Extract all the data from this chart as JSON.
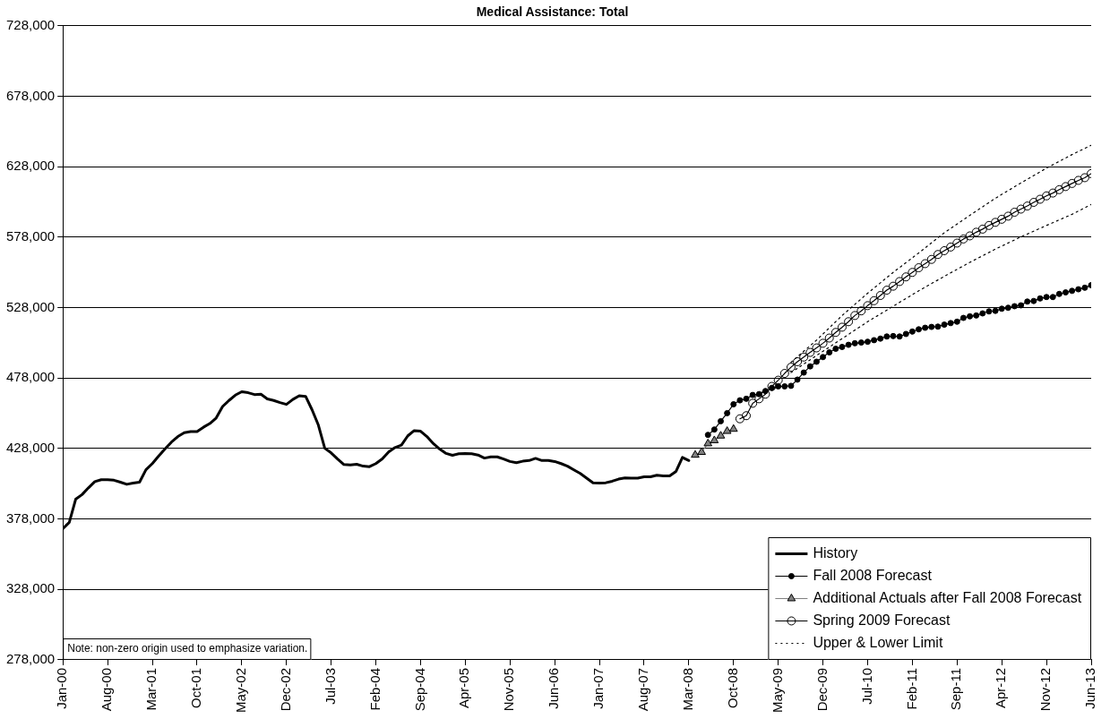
{
  "chart_data": {
    "type": "line",
    "title": "Medical Assistance: Total",
    "xlim": [
      "2000-01",
      "2013-06"
    ],
    "xticks": [
      {
        "value": "2000-01",
        "label": "Jan-00"
      },
      {
        "value": "2000-08",
        "label": "Aug-00"
      },
      {
        "value": "2001-03",
        "label": "Mar-01"
      },
      {
        "value": "2001-10",
        "label": "Oct-01"
      },
      {
        "value": "2002-05",
        "label": "May-02"
      },
      {
        "value": "2002-12",
        "label": "Dec-02"
      },
      {
        "value": "2003-07",
        "label": "Jul-03"
      },
      {
        "value": "2004-02",
        "label": "Feb-04"
      },
      {
        "value": "2004-09",
        "label": "Sep-04"
      },
      {
        "value": "2005-04",
        "label": "Apr-05"
      },
      {
        "value": "2005-11",
        "label": "Nov-05"
      },
      {
        "value": "2006-06",
        "label": "Jun-06"
      },
      {
        "value": "2007-01",
        "label": "Jan-07"
      },
      {
        "value": "2007-08",
        "label": "Aug-07"
      },
      {
        "value": "2008-03",
        "label": "Mar-08"
      },
      {
        "value": "2008-10",
        "label": "Oct-08"
      },
      {
        "value": "2009-05",
        "label": "May-09"
      },
      {
        "value": "2009-12",
        "label": "Dec-09"
      },
      {
        "value": "2010-07",
        "label": "Jul-10"
      },
      {
        "value": "2011-02",
        "label": "Feb-11"
      },
      {
        "value": "2011-09",
        "label": "Sep-11"
      },
      {
        "value": "2012-04",
        "label": "Apr-12"
      },
      {
        "value": "2012-11",
        "label": "Nov-12"
      },
      {
        "value": "2013-06",
        "label": "Jun-13"
      }
    ],
    "ylim": [
      278000,
      728000
    ],
    "yticks": [
      {
        "value": 278000,
        "label": "278,000"
      },
      {
        "value": 328000,
        "label": "328,000"
      },
      {
        "value": 378000,
        "label": "378,000"
      },
      {
        "value": 428000,
        "label": "428,000"
      },
      {
        "value": 478000,
        "label": "478,000"
      },
      {
        "value": 528000,
        "label": "528,000"
      },
      {
        "value": 578000,
        "label": "578,000"
      },
      {
        "value": 628000,
        "label": "628,000"
      },
      {
        "value": 678000,
        "label": "678,000"
      },
      {
        "value": 728000,
        "label": "728,000"
      }
    ],
    "grid": "y",
    "legend": "bottom right",
    "annotations": [
      "Note: non-zero origin used to emphasize variation."
    ],
    "series": [
      {
        "name": "History",
        "color": "#000000",
        "marker": "none",
        "line_style": "solid",
        "x": [
          "2000-01",
          "2000-02",
          "2000-03",
          "2000-04",
          "2000-05",
          "2000-06",
          "2000-07",
          "2000-08",
          "2000-09",
          "2000-10",
          "2000-11",
          "2000-12",
          "2001-01",
          "2001-02",
          "2001-03",
          "2001-04",
          "2001-05",
          "2001-06",
          "2001-07",
          "2001-08",
          "2001-09",
          "2001-10",
          "2001-11",
          "2001-12",
          "2002-01",
          "2002-02",
          "2002-03",
          "2002-04",
          "2002-05",
          "2002-06",
          "2002-07",
          "2002-08",
          "2002-09",
          "2002-10",
          "2002-11",
          "2002-12",
          "2003-01",
          "2003-02",
          "2003-03",
          "2003-04",
          "2003-05",
          "2003-06",
          "2003-07",
          "2003-08",
          "2003-09",
          "2003-10",
          "2003-11",
          "2003-12",
          "2004-01",
          "2004-02",
          "2004-03",
          "2004-04",
          "2004-05",
          "2004-06",
          "2004-07",
          "2004-08",
          "2004-09",
          "2004-10",
          "2004-11",
          "2004-12",
          "2005-01",
          "2005-02",
          "2005-03",
          "2005-04",
          "2005-05",
          "2005-06",
          "2005-07",
          "2005-08",
          "2005-09",
          "2005-10",
          "2005-11",
          "2005-12",
          "2006-01",
          "2006-02",
          "2006-03",
          "2006-04",
          "2006-05",
          "2006-06",
          "2006-07",
          "2006-08",
          "2006-09",
          "2006-10",
          "2006-11",
          "2006-12",
          "2007-01",
          "2007-02",
          "2007-03",
          "2007-04",
          "2007-05",
          "2007-06",
          "2007-07",
          "2007-08",
          "2007-09",
          "2007-10",
          "2007-11",
          "2007-12",
          "2008-01",
          "2008-02",
          "2008-03"
        ],
        "values": [
          371200,
          375600,
          392000,
          395300,
          400100,
          404500,
          405900,
          405900,
          405500,
          404100,
          402600,
          403500,
          404100,
          412900,
          417300,
          422700,
          427800,
          432600,
          436500,
          439200,
          440000,
          440000,
          443100,
          445700,
          449700,
          457800,
          462100,
          465900,
          468300,
          467600,
          466300,
          466500,
          463200,
          462100,
          460600,
          459300,
          462800,
          465400,
          465000,
          455600,
          444600,
          428200,
          424900,
          420600,
          416600,
          416400,
          416800,
          415500,
          415100,
          417300,
          420600,
          425600,
          428700,
          430400,
          437000,
          440700,
          440300,
          436500,
          431500,
          427600,
          424500,
          423200,
          424300,
          424500,
          424300,
          423400,
          421200,
          422100,
          422100,
          420600,
          418800,
          417900,
          419000,
          419500,
          421000,
          419500,
          419500,
          418800,
          417300,
          415500,
          412900,
          410300,
          407000,
          403700,
          403500,
          403700,
          404800,
          406300,
          407200,
          407000,
          407000,
          407900,
          407900,
          409000,
          408600,
          408600,
          411800,
          421700,
          419500
        ]
      },
      {
        "name": "Fall 2008 Forecast",
        "color": "#000000",
        "marker": "circle",
        "line_style": "solid",
        "x": [
          "2008-06",
          "2008-07",
          "2008-08",
          "2008-09",
          "2008-10",
          "2008-11",
          "2008-12",
          "2009-01",
          "2009-02",
          "2009-03",
          "2009-04",
          "2009-05",
          "2009-06",
          "2009-07",
          "2009-08",
          "2009-09",
          "2009-10",
          "2009-11",
          "2009-12",
          "2010-01",
          "2010-02",
          "2010-03",
          "2010-04",
          "2010-05",
          "2010-06",
          "2010-07",
          "2010-08",
          "2010-09",
          "2010-10",
          "2010-11",
          "2010-12",
          "2011-01",
          "2011-02",
          "2011-03",
          "2011-04",
          "2011-05",
          "2011-06",
          "2011-07",
          "2011-08",
          "2011-09",
          "2011-10",
          "2011-11",
          "2011-12",
          "2012-01",
          "2012-02",
          "2012-03",
          "2012-04",
          "2012-05",
          "2012-06",
          "2012-07",
          "2012-08",
          "2012-09",
          "2012-10",
          "2012-11",
          "2012-12",
          "2013-01",
          "2013-02",
          "2013-03",
          "2013-04",
          "2013-05",
          "2013-06"
        ],
        "values": [
          437700,
          441500,
          447400,
          453100,
          459400,
          462200,
          463300,
          466000,
          466600,
          468800,
          471000,
          472100,
          472100,
          472500,
          476900,
          481900,
          486300,
          489600,
          492900,
          496200,
          498800,
          500100,
          501600,
          502700,
          503200,
          503800,
          504900,
          506000,
          507500,
          507800,
          507500,
          509300,
          511000,
          512600,
          513700,
          514300,
          514500,
          515900,
          517000,
          518000,
          520700,
          521800,
          522400,
          523900,
          525300,
          525700,
          527200,
          527900,
          529000,
          529600,
          532300,
          532700,
          534500,
          535500,
          535500,
          537700,
          538800,
          539900,
          541000,
          542100,
          543900
        ]
      },
      {
        "name": "Additional Actuals after Fall 2008 Forecast",
        "color": "#808080",
        "marker": "triangle",
        "line_style": "solid",
        "x": [
          "2008-04",
          "2008-05",
          "2008-06",
          "2008-07",
          "2008-08",
          "2008-09",
          "2008-10"
        ],
        "values": [
          423400,
          425400,
          431500,
          433700,
          437000,
          440300,
          441800
        ]
      },
      {
        "name": "Spring 2009 Forecast",
        "color": "#000000",
        "marker": "circle",
        "line_style": "solid",
        "x": [
          "2008-11",
          "2008-12",
          "2009-01",
          "2009-02",
          "2009-03",
          "2009-04",
          "2009-05",
          "2009-06",
          "2009-07",
          "2009-08",
          "2009-09",
          "2009-10",
          "2009-11",
          "2009-12",
          "2010-01",
          "2010-02",
          "2010-03",
          "2010-04",
          "2010-05",
          "2010-06",
          "2010-07",
          "2010-08",
          "2010-09",
          "2010-10",
          "2010-11",
          "2010-12",
          "2011-01",
          "2011-02",
          "2011-03",
          "2011-04",
          "2011-05",
          "2011-06",
          "2011-07",
          "2011-08",
          "2011-09",
          "2011-10",
          "2011-11",
          "2011-12",
          "2012-01",
          "2012-02",
          "2012-03",
          "2012-04",
          "2012-05",
          "2012-06",
          "2012-07",
          "2012-08",
          "2012-09",
          "2012-10",
          "2012-11",
          "2012-12",
          "2013-01",
          "2013-02",
          "2013-03",
          "2013-04",
          "2013-05",
          "2013-06"
        ],
        "values": [
          449100,
          451300,
          460100,
          463300,
          466600,
          472100,
          476500,
          481300,
          485700,
          489600,
          492900,
          496200,
          499400,
          502700,
          506400,
          510400,
          514100,
          518000,
          522400,
          525700,
          529400,
          532900,
          536600,
          540400,
          543200,
          546500,
          549800,
          553000,
          556300,
          559200,
          562200,
          565700,
          568400,
          571000,
          573800,
          576700,
          578900,
          581500,
          583700,
          586300,
          588500,
          590700,
          592900,
          595700,
          597900,
          600100,
          602700,
          604900,
          607300,
          609300,
          611700,
          613900,
          616100,
          618300,
          620200,
          623100
        ]
      },
      {
        "name": "Upper & Lower Limit",
        "color": "#000000",
        "marker": "none",
        "line_style": "dotted",
        "x": [
          "2009-07",
          "2009-11",
          "2010-03",
          "2010-07",
          "2010-11",
          "2011-03",
          "2011-07",
          "2011-11",
          "2012-03",
          "2012-07",
          "2012-11",
          "2013-03",
          "2013-06"
        ],
        "values": [
          489200,
          504900,
          522400,
          538200,
          553000,
          566800,
          581100,
          593500,
          605600,
          616500,
          627000,
          636600,
          643200
        ]
      },
      {
        "color": "#000000",
        "marker": "none",
        "line_style": "dotted",
        "x": [
          "2009-07",
          "2009-11",
          "2010-03",
          "2010-07",
          "2010-11",
          "2011-03",
          "2011-07",
          "2011-11",
          "2012-03",
          "2012-07",
          "2012-11",
          "2013-03",
          "2013-06"
        ],
        "values": [
          481900,
          494000,
          506000,
          518000,
          529000,
          539900,
          550200,
          560100,
          569500,
          578200,
          586300,
          594200,
          601200
        ]
      }
    ]
  }
}
